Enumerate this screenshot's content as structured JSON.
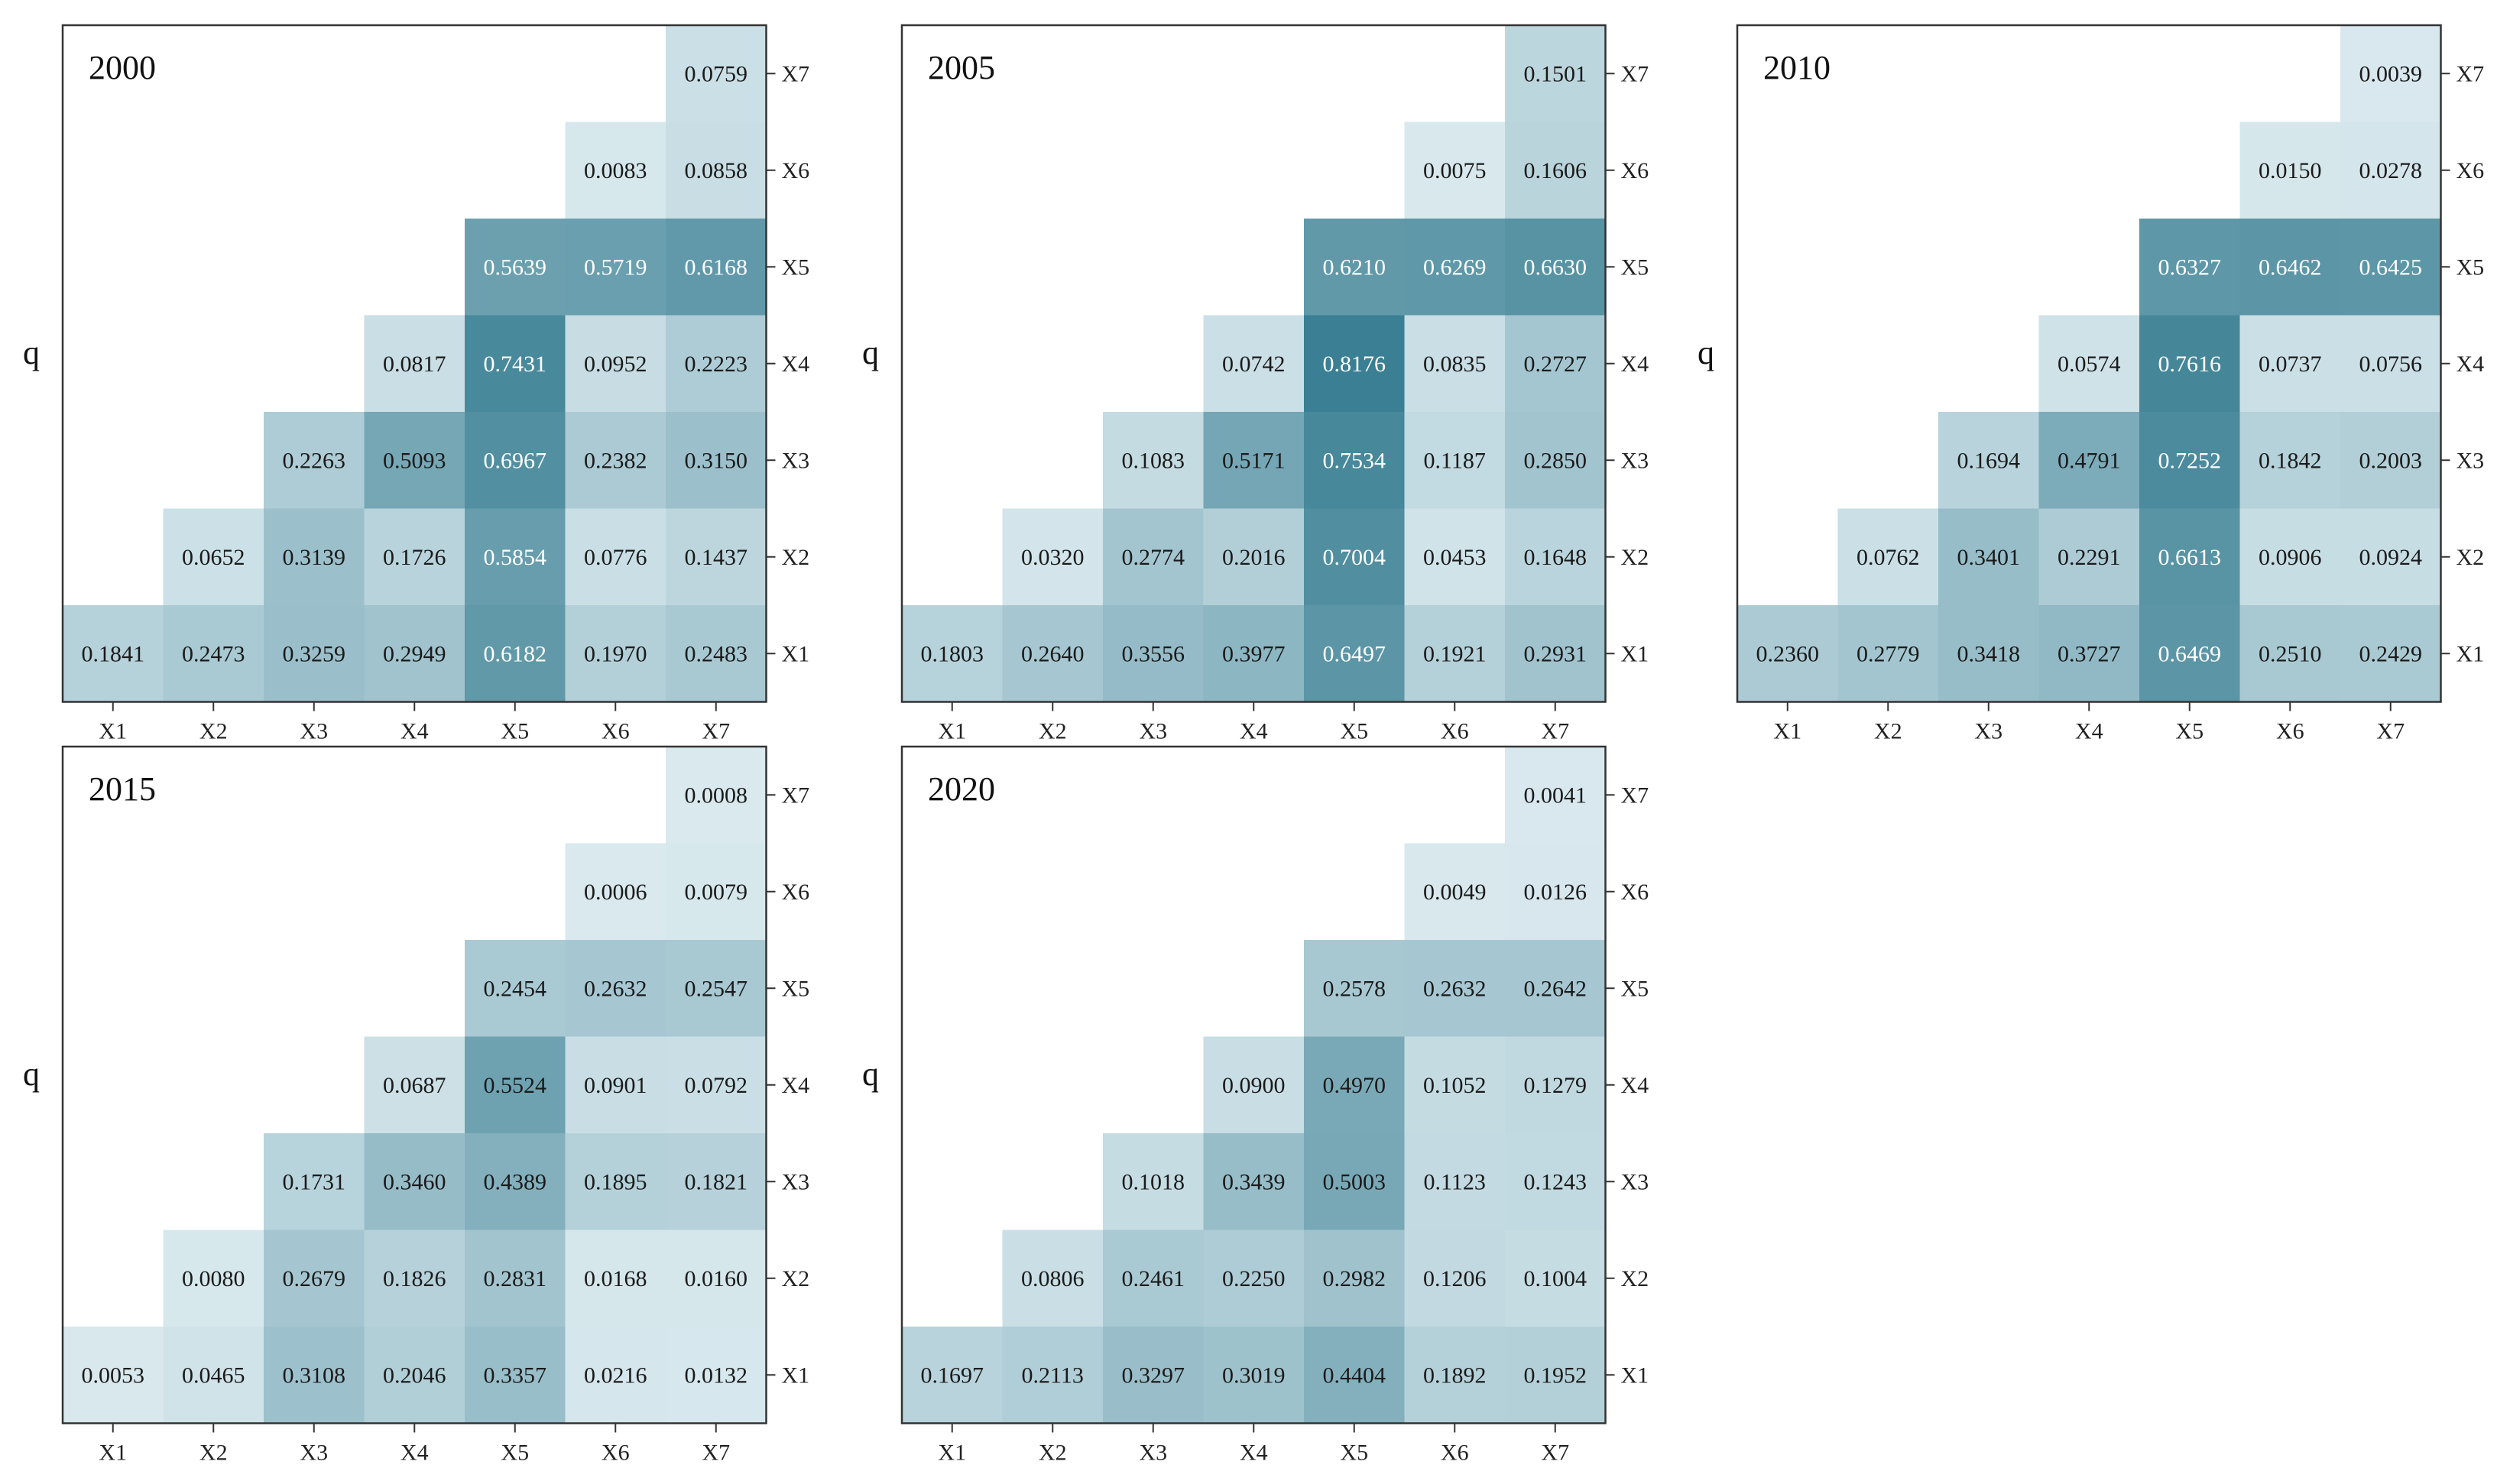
{
  "chart_data": [
    {
      "type": "heatmap",
      "title": "2000",
      "ylabel": "q",
      "x_labels": [
        "X1",
        "X2",
        "X3",
        "X4",
        "X5",
        "X6",
        "X7"
      ],
      "y_labels": [
        "X1",
        "X2",
        "X3",
        "X4",
        "X5",
        "X6",
        "X7"
      ],
      "color_scale": [
        "#d9e9ee",
        "#3a7f93"
      ],
      "value_range": [
        0,
        0.82
      ],
      "rows": [
        {
          "y": "X7",
          "values": [
            null,
            null,
            null,
            null,
            null,
            null,
            "0.0759"
          ]
        },
        {
          "y": "X6",
          "values": [
            null,
            null,
            null,
            null,
            null,
            "0.0083",
            "0.0858"
          ]
        },
        {
          "y": "X5",
          "values": [
            null,
            null,
            null,
            null,
            "0.5639",
            "0.5719",
            "0.6168"
          ]
        },
        {
          "y": "X4",
          "values": [
            null,
            null,
            null,
            "0.0817",
            "0.7431",
            "0.0952",
            "0.2223"
          ]
        },
        {
          "y": "X3",
          "values": [
            null,
            null,
            "0.2263",
            "0.5093",
            "0.6967",
            "0.2382",
            "0.3150"
          ]
        },
        {
          "y": "X2",
          "values": [
            null,
            "0.0652",
            "0.3139",
            "0.1726",
            "0.5854",
            "0.0776",
            "0.1437"
          ]
        },
        {
          "y": "X1",
          "values": [
            "0.1841",
            "0.2473",
            "0.3259",
            "0.2949",
            "0.6182",
            "0.1970",
            "0.2483"
          ]
        }
      ]
    },
    {
      "type": "heatmap",
      "title": "2005",
      "ylabel": "q",
      "x_labels": [
        "X1",
        "X2",
        "X3",
        "X4",
        "X5",
        "X6",
        "X7"
      ],
      "y_labels": [
        "X1",
        "X2",
        "X3",
        "X4",
        "X5",
        "X6",
        "X7"
      ],
      "color_scale": [
        "#d9e9ee",
        "#3a7f93"
      ],
      "value_range": [
        0,
        0.82
      ],
      "rows": [
        {
          "y": "X7",
          "values": [
            null,
            null,
            null,
            null,
            null,
            null,
            "0.1501"
          ]
        },
        {
          "y": "X6",
          "values": [
            null,
            null,
            null,
            null,
            null,
            "0.0075",
            "0.1606"
          ]
        },
        {
          "y": "X5",
          "values": [
            null,
            null,
            null,
            null,
            "0.6210",
            "0.6269",
            "0.6630"
          ]
        },
        {
          "y": "X4",
          "values": [
            null,
            null,
            null,
            "0.0742",
            "0.8176",
            "0.0835",
            "0.2727"
          ]
        },
        {
          "y": "X3",
          "values": [
            null,
            null,
            "0.1083",
            "0.5171",
            "0.7534",
            "0.1187",
            "0.2850"
          ]
        },
        {
          "y": "X2",
          "values": [
            null,
            "0.0320",
            "0.2774",
            "0.2016",
            "0.7004",
            "0.0453",
            "0.1648"
          ]
        },
        {
          "y": "X1",
          "values": [
            "0.1803",
            "0.2640",
            "0.3556",
            "0.3977",
            "0.6497",
            "0.1921",
            "0.2931"
          ]
        }
      ]
    },
    {
      "type": "heatmap",
      "title": "2010",
      "ylabel": "q",
      "x_labels": [
        "X1",
        "X2",
        "X3",
        "X4",
        "X5",
        "X6",
        "X7"
      ],
      "y_labels": [
        "X1",
        "X2",
        "X3",
        "X4",
        "X5",
        "X6",
        "X7"
      ],
      "color_scale": [
        "#d9e9ee",
        "#3a7f93"
      ],
      "value_range": [
        0,
        0.82
      ],
      "rows": [
        {
          "y": "X7",
          "values": [
            null,
            null,
            null,
            null,
            null,
            null,
            "0.0039"
          ]
        },
        {
          "y": "X6",
          "values": [
            null,
            null,
            null,
            null,
            null,
            "0.0150",
            "0.0278"
          ]
        },
        {
          "y": "X5",
          "values": [
            null,
            null,
            null,
            null,
            "0.6327",
            "0.6462",
            "0.6425"
          ]
        },
        {
          "y": "X4",
          "values": [
            null,
            null,
            null,
            "0.0574",
            "0.7616",
            "0.0737",
            "0.0756"
          ]
        },
        {
          "y": "X3",
          "values": [
            null,
            null,
            "0.1694",
            "0.4791",
            "0.7252",
            "0.1842",
            "0.2003"
          ]
        },
        {
          "y": "X2",
          "values": [
            null,
            "0.0762",
            "0.3401",
            "0.2291",
            "0.6613",
            "0.0906",
            "0.0924"
          ]
        },
        {
          "y": "X1",
          "values": [
            "0.2360",
            "0.2779",
            "0.3418",
            "0.3727",
            "0.6469",
            "0.2510",
            "0.2429"
          ]
        }
      ]
    },
    {
      "type": "heatmap",
      "title": "2015",
      "ylabel": "q",
      "x_labels": [
        "X1",
        "X2",
        "X3",
        "X4",
        "X5",
        "X6",
        "X7"
      ],
      "y_labels": [
        "X1",
        "X2",
        "X3",
        "X4",
        "X5",
        "X6",
        "X7"
      ],
      "color_scale": [
        "#d9e9ee",
        "#3a7f93"
      ],
      "value_range": [
        0,
        0.82
      ],
      "rows": [
        {
          "y": "X7",
          "values": [
            null,
            null,
            null,
            null,
            null,
            null,
            "0.0008"
          ]
        },
        {
          "y": "X6",
          "values": [
            null,
            null,
            null,
            null,
            null,
            "0.0006",
            "0.0079"
          ]
        },
        {
          "y": "X5",
          "values": [
            null,
            null,
            null,
            null,
            "0.2454",
            "0.2632",
            "0.2547"
          ]
        },
        {
          "y": "X4",
          "values": [
            null,
            null,
            null,
            "0.0687",
            "0.5524",
            "0.0901",
            "0.0792"
          ]
        },
        {
          "y": "X3",
          "values": [
            null,
            null,
            "0.1731",
            "0.3460",
            "0.4389",
            "0.1895",
            "0.1821"
          ]
        },
        {
          "y": "X2",
          "values": [
            null,
            "0.0080",
            "0.2679",
            "0.1826",
            "0.2831",
            "0.0168",
            "0.0160"
          ]
        },
        {
          "y": "X1",
          "values": [
            "0.0053",
            "0.0465",
            "0.3108",
            "0.2046",
            "0.3357",
            "0.0216",
            "0.0132"
          ]
        }
      ]
    },
    {
      "type": "heatmap",
      "title": "2020",
      "ylabel": "q",
      "x_labels": [
        "X1",
        "X2",
        "X3",
        "X4",
        "X5",
        "X6",
        "X7"
      ],
      "y_labels": [
        "X1",
        "X2",
        "X3",
        "X4",
        "X5",
        "X6",
        "X7"
      ],
      "color_scale": [
        "#d9e9ee",
        "#3a7f93"
      ],
      "value_range": [
        0,
        0.82
      ],
      "rows": [
        {
          "y": "X7",
          "values": [
            null,
            null,
            null,
            null,
            null,
            null,
            "0.0041"
          ]
        },
        {
          "y": "X6",
          "values": [
            null,
            null,
            null,
            null,
            null,
            "0.0049",
            "0.0126"
          ]
        },
        {
          "y": "X5",
          "values": [
            null,
            null,
            null,
            null,
            "0.2578",
            "0.2632",
            "0.2642"
          ]
        },
        {
          "y": "X4",
          "values": [
            null,
            null,
            null,
            "0.0900",
            "0.4970",
            "0.1052",
            "0.1279"
          ]
        },
        {
          "y": "X3",
          "values": [
            null,
            null,
            "0.1018",
            "0.3439",
            "0.5003",
            "0.1123",
            "0.1243"
          ]
        },
        {
          "y": "X2",
          "values": [
            null,
            "0.0806",
            "0.2461",
            "0.2250",
            "0.2982",
            "0.1206",
            "0.1004"
          ]
        },
        {
          "y": "X1",
          "values": [
            "0.1697",
            "0.2113",
            "0.3297",
            "0.3019",
            "0.4404",
            "0.1892",
            "0.1952"
          ]
        }
      ]
    }
  ]
}
